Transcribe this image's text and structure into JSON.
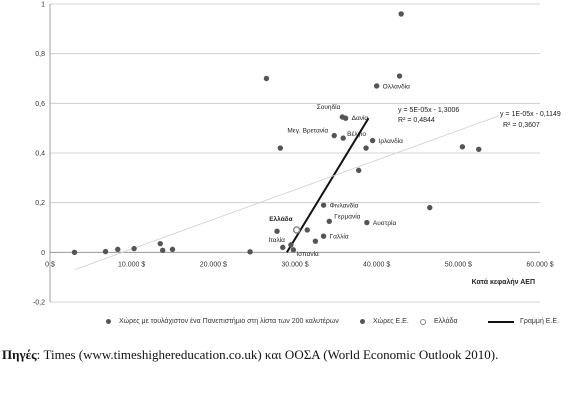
{
  "chart_data": {
    "type": "scatter",
    "title": "",
    "xlabel": "Κατά κεφαλήν ΑΕΠ",
    "ylabel": "",
    "xlim": [
      0,
      60000
    ],
    "ylim": [
      -0.2,
      1.0
    ],
    "x_ticks": [
      "0 $",
      "10.000 $",
      "20.000 $",
      "30.000 $",
      "40.000 $",
      "50.000 $",
      "60.000 $"
    ],
    "x_tick_values": [
      0,
      10000,
      20000,
      30000,
      40000,
      50000,
      60000
    ],
    "y_ticks": [
      "-0,2",
      "0",
      "0,2",
      "0,4",
      "0,6",
      "0,8",
      "1"
    ],
    "y_tick_values": [
      -0.2,
      0,
      0.2,
      0.4,
      0.6,
      0.8,
      1.0
    ],
    "grid": "horizontal",
    "series": [
      {
        "name": "Χώρες με τουλάχιστον ένα Πανεπιστήμιο στη λίστα των 200 καλυτέρων",
        "color": "#555555",
        "points": [
          {
            "x": 43000,
            "y": 0.96
          },
          {
            "x": 42800,
            "y": 0.71
          },
          {
            "x": 26500,
            "y": 0.7
          },
          {
            "x": 28200,
            "y": 0.42
          },
          {
            "x": 38700,
            "y": 0.42
          },
          {
            "x": 37800,
            "y": 0.33
          },
          {
            "x": 50500,
            "y": 0.425
          },
          {
            "x": 52500,
            "y": 0.415
          },
          {
            "x": 46500,
            "y": 0.18
          },
          {
            "x": 31500,
            "y": 0.09
          },
          {
            "x": 27800,
            "y": 0.085
          },
          {
            "x": 32500,
            "y": 0.045
          },
          {
            "x": 28500,
            "y": 0.02
          }
        ]
      },
      {
        "name": "Χώρες Ε.Ε.",
        "color": "#555555",
        "points": [
          {
            "x": 40000,
            "y": 0.67,
            "label": "Ολλανδία"
          },
          {
            "x": 35800,
            "y": 0.545,
            "label": "Σουηδία"
          },
          {
            "x": 36200,
            "y": 0.54,
            "label": "Δανία"
          },
          {
            "x": 34800,
            "y": 0.47,
            "label": "Μεγ. Βρετανία"
          },
          {
            "x": 35900,
            "y": 0.46,
            "label": "Βέλγιο"
          },
          {
            "x": 39500,
            "y": 0.45,
            "label": "Ιρλανδία"
          },
          {
            "x": 33500,
            "y": 0.19,
            "label": "Φινλανδία"
          },
          {
            "x": 34200,
            "y": 0.125,
            "label": "Γερμανία"
          },
          {
            "x": 38800,
            "y": 0.12,
            "label": "Αυστρία"
          },
          {
            "x": 33500,
            "y": 0.065,
            "label": "Γαλλία"
          },
          {
            "x": 29500,
            "y": 0.03,
            "label": "Ιταλία"
          },
          {
            "x": 29800,
            "y": 0.01,
            "label": "Ισπανία"
          },
          {
            "x": 24500,
            "y": 0.002
          },
          {
            "x": 13500,
            "y": 0.035
          },
          {
            "x": 13800,
            "y": 0.008
          },
          {
            "x": 15000,
            "y": 0.012
          },
          {
            "x": 10300,
            "y": 0.015
          },
          {
            "x": 8300,
            "y": 0.012
          },
          {
            "x": 6800,
            "y": 0.003
          },
          {
            "x": 3000,
            "y": 0.0
          }
        ]
      },
      {
        "name": "Ελλάδα",
        "color": "#999999",
        "points": [
          {
            "x": 30200,
            "y": 0.09,
            "label": "Ελλάδα"
          }
        ]
      }
    ],
    "trendlines": [
      {
        "name": "Γραμμή Ε.Ε.",
        "style": "solid",
        "from": {
          "x": 29000,
          "y": 0.0
        },
        "to": {
          "x": 39000,
          "y": 0.54
        },
        "equation": "y = 5E-05x - 1,3006",
        "r2": "R² = 0,4844"
      },
      {
        "name": "",
        "style": "faint",
        "from": {
          "x": 3000,
          "y": -0.07
        },
        "to": {
          "x": 55000,
          "y": 0.55
        },
        "equation": "y = 1E-05x - 0,1149",
        "r2": "R² = 0,3607"
      }
    ],
    "legend_position": "bottom"
  },
  "caption": {
    "source_label": "Πηγές",
    "source_text": ": Times (www.timeshighereducation.co.uk) και ΟΟΣΑ (World Economic Outlook 2010)."
  }
}
